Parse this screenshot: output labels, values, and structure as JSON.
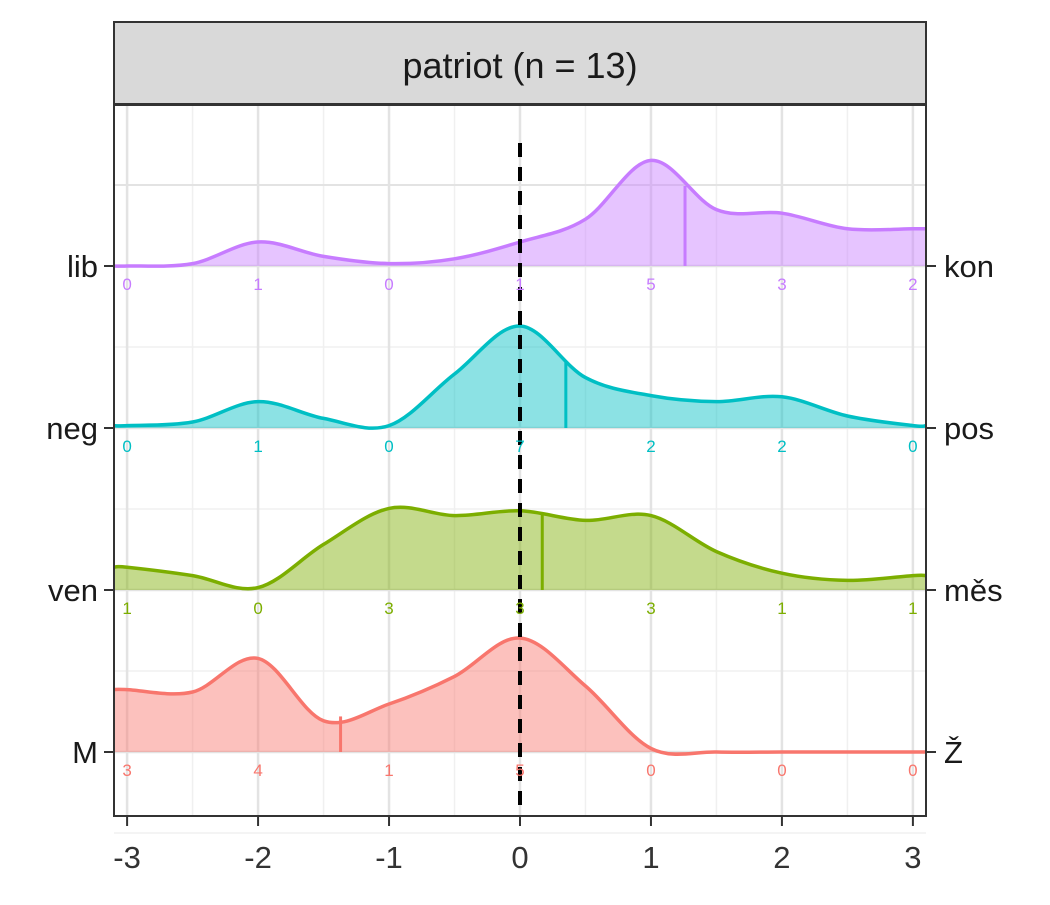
{
  "chart_data": {
    "type": "area",
    "title": "patriot (n = 13)",
    "xlabel": "",
    "ylabel": "",
    "xlim": [
      -3.1,
      3.1
    ],
    "x_ticks": [
      "-3",
      "-2",
      "-1",
      "0",
      "1",
      "2",
      "3"
    ],
    "reference_line_x": 0,
    "grid": true,
    "density_x": [
      -3,
      -2.5,
      -2,
      -1.5,
      -1,
      -0.5,
      0,
      0.5,
      1,
      1.5,
      2,
      2.5,
      3
    ],
    "series": [
      {
        "left_label": "M",
        "right_label": "Ž",
        "color": "#F8766D",
        "mean": -1.37,
        "counts": [
          "3",
          "4",
          "1",
          "5",
          "0",
          "0",
          "0"
        ],
        "density": [
          0.52,
          0.5,
          0.78,
          0.26,
          0.4,
          0.63,
          0.95,
          0.55,
          0.03,
          0,
          0,
          0,
          0
        ]
      },
      {
        "left_label": "ven",
        "right_label": "měs",
        "color": "#7CAE00",
        "mean": 0.17,
        "counts": [
          "1",
          "0",
          "3",
          "3",
          "3",
          "1",
          "1"
        ],
        "density": [
          0.19,
          0.12,
          0.02,
          0.38,
          0.68,
          0.62,
          0.66,
          0.58,
          0.62,
          0.32,
          0.14,
          0.08,
          0.12
        ]
      },
      {
        "left_label": "neg",
        "right_label": "pos",
        "color": "#00BFC4",
        "mean": 0.35,
        "counts": [
          "0",
          "1",
          "0",
          "7",
          "2",
          "2",
          "0"
        ],
        "density": [
          0.02,
          0.05,
          0.22,
          0.08,
          0.02,
          0.45,
          0.85,
          0.42,
          0.27,
          0.22,
          0.26,
          0.1,
          0.02
        ]
      },
      {
        "left_label": "lib",
        "right_label": "kon",
        "color": "#C77CFF",
        "mean": 1.26,
        "counts": [
          "0",
          "1",
          "0",
          "1",
          "5",
          "3",
          "2"
        ],
        "density": [
          0,
          0.02,
          0.2,
          0.08,
          0.02,
          0.06,
          0.2,
          0.39,
          0.88,
          0.47,
          0.44,
          0.31,
          0.31
        ]
      }
    ]
  }
}
